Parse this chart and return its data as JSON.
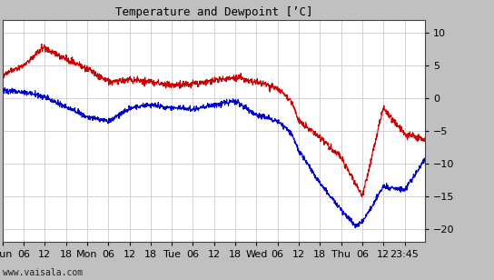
{
  "title": "Temperature and Dewpoint [’C]",
  "ylim": [
    -22,
    12
  ],
  "yticks": [
    -20,
    -15,
    -10,
    -5,
    0,
    5,
    10
  ],
  "x_labels": [
    "Sun",
    "06",
    "12",
    "18",
    "Mon",
    "06",
    "12",
    "18",
    "Tue",
    "06",
    "12",
    "18",
    "Wed",
    "06",
    "12",
    "18",
    "Thu",
    "06",
    "12",
    "23:45"
  ],
  "background_color": "#ffffff",
  "outer_bg": "#c0c0c0",
  "grid_color": "#cccccc",
  "temp_color": "#cc0000",
  "dewp_color": "#0000cc",
  "line_width": 0.8,
  "watermark": "www.vaisala.com",
  "total_hours": 119.75,
  "n_points": 1500,
  "title_fontsize": 9,
  "tick_fontsize": 8,
  "watermark_fontsize": 7
}
